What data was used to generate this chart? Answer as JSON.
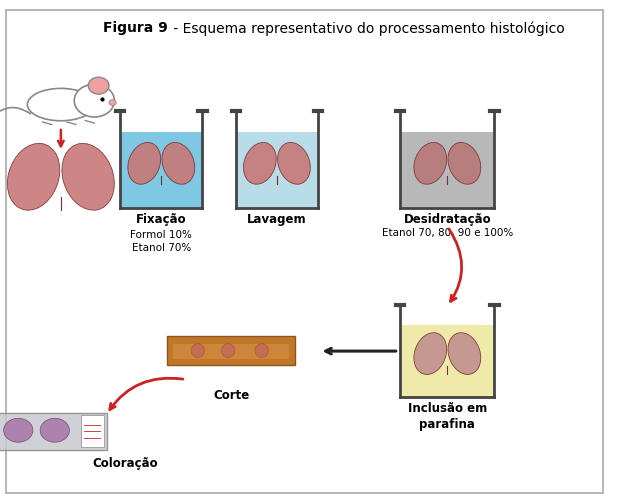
{
  "title_bold": "Figura 9",
  "title_regular": " - Esquema representativo do processamento histológico",
  "background_color": "#ffffff",
  "border_color": "#aaaaaa",
  "label_fixacao": "Fixação",
  "sublabel_fixacao": "Formol 10%\nEtanol 70%",
  "label_lavagem": "Lavagem",
  "label_desidratacao": "Desidratação",
  "sublabel_desidratacao": "Etanol 70, 80, 90 e 100%",
  "label_corte": "Corte",
  "label_coloracao": "Coloração",
  "label_inclusao": "Inclusão em\nparafina",
  "fixacao_liquid": "#7ec8e3",
  "lavagem_liquid": "#b8dce8",
  "desidratacao_liquid": "#b8b8b8",
  "inclusao_liquid": "#f0eaaa",
  "lung_color_blue": "#c87878",
  "lung_color_gray": "#b87878",
  "lung_color_yellow": "#c09090",
  "arrow_red": "#cc2222",
  "arrow_black": "#222222"
}
